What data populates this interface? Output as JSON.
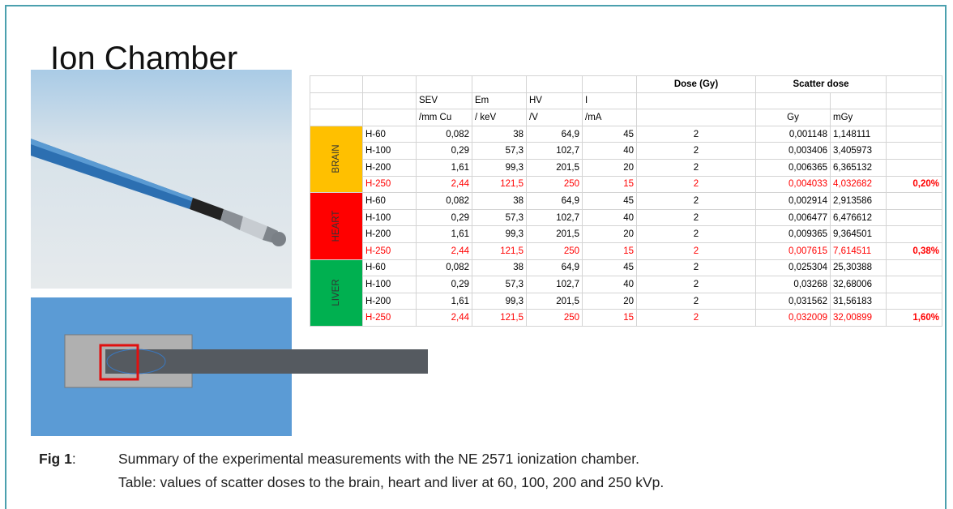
{
  "title": "Ion Chamber",
  "table": {
    "header": {
      "dose": "Dose (Gy)",
      "scatter": "Scatter dose",
      "sev": "SEV",
      "em": "Em",
      "hv": "HV",
      "i": "I",
      "sev_unit": "/mm Cu",
      "em_unit": "/ keV",
      "hv_unit": "/V",
      "i_unit": "/mA",
      "gy": "Gy",
      "mgy": "mGy"
    },
    "groups": [
      {
        "organ": "BRAIN",
        "color": "#ffc000",
        "percent": "0,20%",
        "rows": [
          [
            "H-60",
            "0,082",
            "38",
            "64,9",
            "45",
            "2",
            "0,001148",
            "1,148111"
          ],
          [
            "H-100",
            "0,29",
            "57,3",
            "102,7",
            "40",
            "2",
            "0,003406",
            "3,405973"
          ],
          [
            "H-200",
            "1,61",
            "99,3",
            "201,5",
            "20",
            "2",
            "0,006365",
            "6,365132"
          ],
          [
            "H-250",
            "2,44",
            "121,5",
            "250",
            "15",
            "2",
            "0,004033",
            "4,032682"
          ]
        ]
      },
      {
        "organ": "HEART",
        "color": "#ff0000",
        "percent": "0,38%",
        "rows": [
          [
            "H-60",
            "0,082",
            "38",
            "64,9",
            "45",
            "2",
            "0,002914",
            "2,913586"
          ],
          [
            "H-100",
            "0,29",
            "57,3",
            "102,7",
            "40",
            "2",
            "0,006477",
            "6,476612"
          ],
          [
            "H-200",
            "1,61",
            "99,3",
            "201,5",
            "20",
            "2",
            "0,009365",
            "9,364501"
          ],
          [
            "H-250",
            "2,44",
            "121,5",
            "250",
            "15",
            "2",
            "0,007615",
            "7,614511"
          ]
        ]
      },
      {
        "organ": "LIVER",
        "color": "#00b050",
        "percent": "1,60%",
        "rows": [
          [
            "H-60",
            "0,082",
            "38",
            "64,9",
            "45",
            "2",
            "0,025304",
            "25,30388"
          ],
          [
            "H-100",
            "0,29",
            "57,3",
            "102,7",
            "40",
            "2",
            "0,03268",
            "32,68006"
          ],
          [
            "H-200",
            "1,61",
            "99,3",
            "201,5",
            "20",
            "2",
            "0,031562",
            "31,56183"
          ],
          [
            "H-250",
            "2,44",
            "121,5",
            "250",
            "15",
            "2",
            "0,032009",
            "32,00899"
          ]
        ]
      }
    ]
  },
  "caption": {
    "label": "Fig 1",
    "separator": ":",
    "lines": [
      "Summary of the experimental measurements with the NE 2571 ionization chamber.",
      "Table: values of scatter doses to the brain, heart and liver at 60, 100, 200 and 250 kVp."
    ]
  }
}
